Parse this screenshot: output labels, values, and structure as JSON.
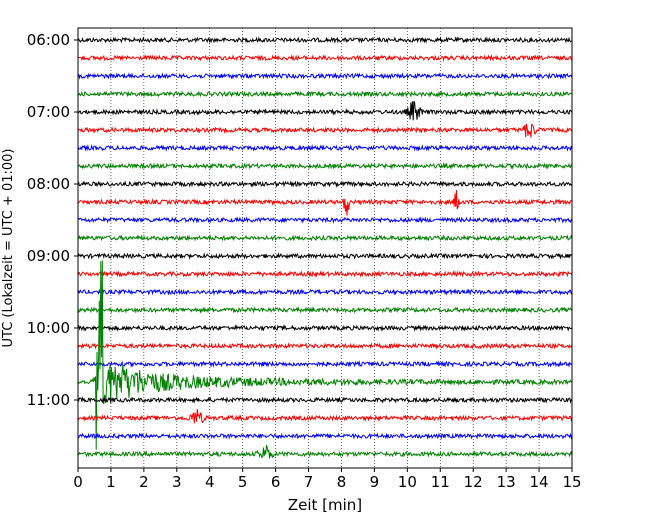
{
  "chart_data": {
    "type": "line",
    "title": "",
    "xlabel": "Zeit  [min]",
    "ylabel": "UTC (Lokalzeit = UTC + 01:00)",
    "xlim": [
      0,
      15
    ],
    "x_ticks": [
      "0",
      "1",
      "2",
      "3",
      "4",
      "5",
      "6",
      "7",
      "8",
      "9",
      "10",
      "11",
      "12",
      "13",
      "14",
      "15"
    ],
    "y_ticks": [
      "06:00",
      "07:00",
      "08:00",
      "09:00",
      "10:00",
      "11:00"
    ],
    "grid": "vertical dotted",
    "legend": "none",
    "trace_interval_minutes": 15,
    "trace_colors": [
      "#000000",
      "#ff0000",
      "#0000ff",
      "#008000"
    ],
    "traces": [
      {
        "start": "06:00"
      },
      {
        "start": "06:15"
      },
      {
        "start": "06:30"
      },
      {
        "start": "06:45"
      },
      {
        "start": "07:00"
      },
      {
        "start": "07:15"
      },
      {
        "start": "07:30"
      },
      {
        "start": "07:45"
      },
      {
        "start": "08:00"
      },
      {
        "start": "08:15"
      },
      {
        "start": "08:30"
      },
      {
        "start": "08:45"
      },
      {
        "start": "09:00"
      },
      {
        "start": "09:15"
      },
      {
        "start": "09:30"
      },
      {
        "start": "09:45"
      },
      {
        "start": "10:00"
      },
      {
        "start": "10:15"
      },
      {
        "start": "10:30"
      },
      {
        "start": "10:45"
      },
      {
        "start": "11:00"
      },
      {
        "start": "11:15"
      },
      {
        "start": "11:30"
      },
      {
        "start": "11:45"
      }
    ],
    "events": [
      {
        "trace": "08:15",
        "minute": 8.15,
        "type": "spike",
        "amplitude": 1.0
      },
      {
        "trace": "08:15",
        "minute": 11.5,
        "type": "spike",
        "amplitude": 0.8
      },
      {
        "trace": "10:45",
        "minute": 0.55,
        "type": "earthquake",
        "amplitude": 1.0
      },
      {
        "trace": "11:45",
        "minute": 5.7,
        "type": "burst",
        "amplitude": 0.2
      },
      {
        "trace": "07:00",
        "minute": 10.2,
        "type": "burst",
        "amplitude": 0.25
      },
      {
        "trace": "07:15",
        "minute": 13.7,
        "type": "burst",
        "amplitude": 0.2
      },
      {
        "trace": "11:15",
        "minute": 3.6,
        "type": "burst",
        "amplitude": 0.2
      }
    ]
  }
}
